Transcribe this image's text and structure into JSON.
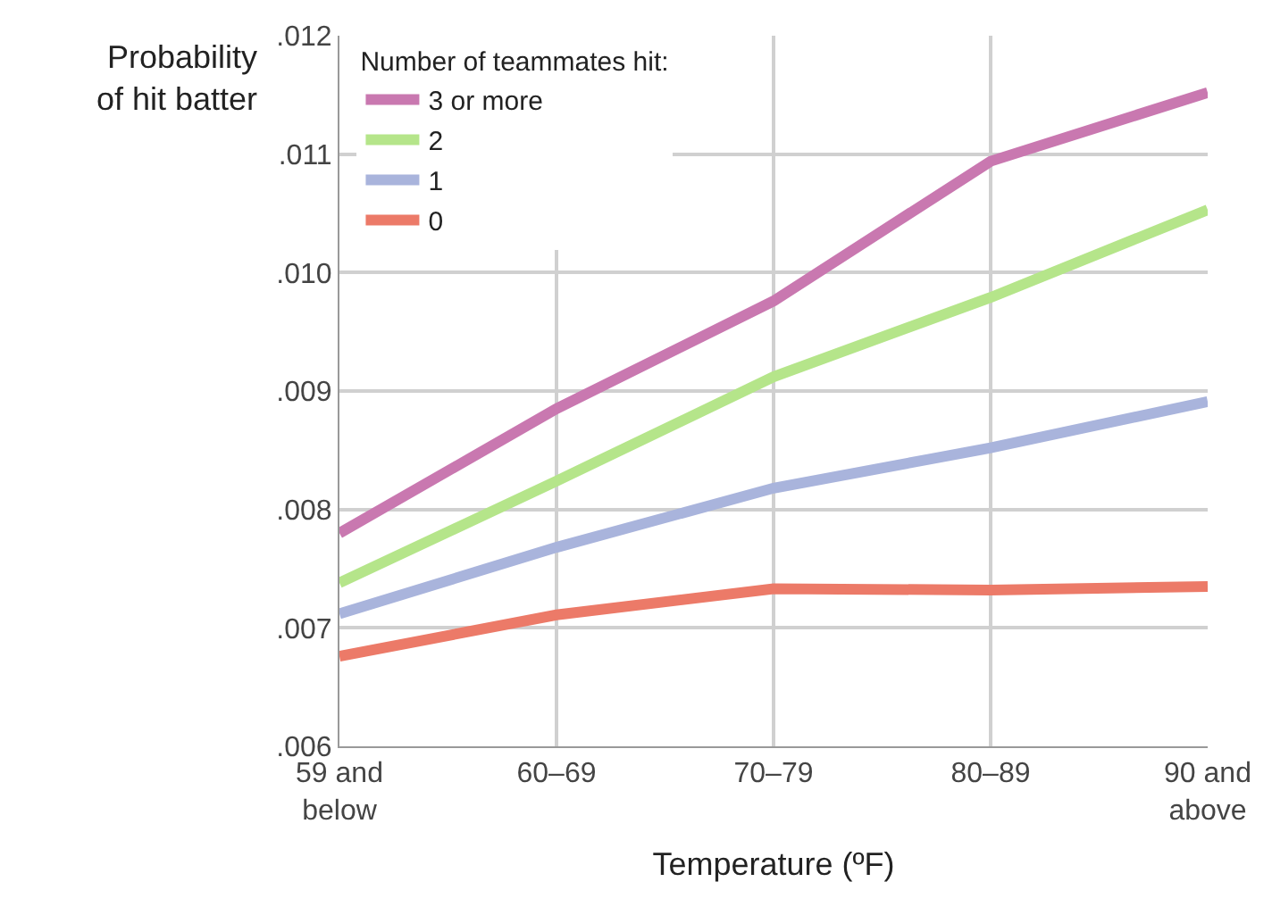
{
  "chart_data": {
    "type": "line",
    "xlabel": "Temperature (ºF)",
    "ylabel": "Probability\nof hit batter",
    "legend_title": "Number of teammates hit:",
    "legend": "top left",
    "grid": true,
    "line_style": "solid",
    "marker": "none",
    "categories": [
      "59 and\nbelow",
      "60–69",
      "70–79",
      "80–89",
      "90 and\nabove"
    ],
    "ylim": [
      0.006,
      0.012
    ],
    "yticks": [
      {
        "value": 0.006,
        "label": ".006"
      },
      {
        "value": 0.007,
        "label": ".007"
      },
      {
        "value": 0.008,
        "label": ".008"
      },
      {
        "value": 0.009,
        "label": ".009"
      },
      {
        "value": 0.01,
        "label": ".010"
      },
      {
        "value": 0.011,
        "label": ".011"
      },
      {
        "value": 0.012,
        "label": ".012"
      }
    ],
    "series": [
      {
        "name": "3 or more",
        "color": "#c978b0",
        "values": [
          0.0078,
          0.00885,
          0.00976,
          0.01094,
          0.01152
        ]
      },
      {
        "name": "2",
        "color": "#b5e58a",
        "values": [
          0.00738,
          0.00824,
          0.00912,
          0.00979,
          0.01053
        ]
      },
      {
        "name": "1",
        "color": "#a9b4dc",
        "values": [
          0.00712,
          0.00768,
          0.00818,
          0.00852,
          0.00891
        ]
      },
      {
        "name": "0",
        "color": "#ec7a68",
        "values": [
          0.00676,
          0.00711,
          0.00733,
          0.00732,
          0.00735
        ]
      }
    ]
  }
}
